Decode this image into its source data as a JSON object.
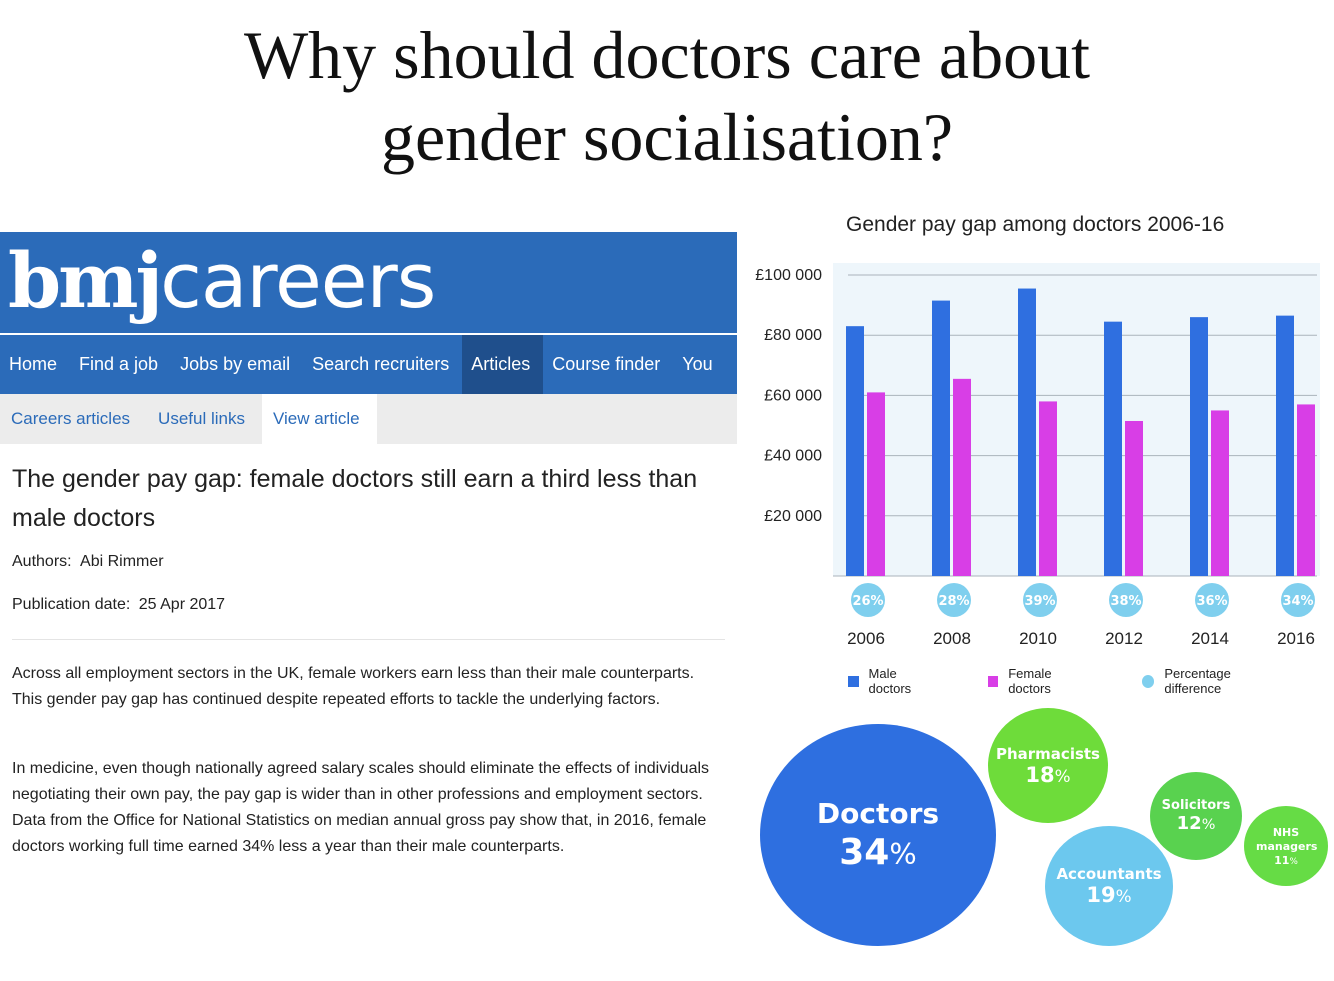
{
  "slide": {
    "title_line1": "Why should doctors care about",
    "title_line2": "gender socialisation?"
  },
  "bmj": {
    "logo_bold": "bmj",
    "logo_light": "careers",
    "nav": [
      "Home",
      "Find a job",
      "Jobs by email",
      "Search recruiters",
      "Articles",
      "Course finder",
      "You"
    ],
    "nav_active": "Articles",
    "subnav": [
      "Careers articles",
      "Useful links",
      "View article"
    ],
    "subnav_active": "View article",
    "article_title": "The gender pay gap: female doctors still earn a third less than male doctors",
    "authors_label": "Authors:",
    "authors_value": "Abi Rimmer",
    "pubdate_label": "Publication date:",
    "pubdate_value": "25 Apr 2017",
    "paragraphs": [
      "Across all employment sectors in the UK, female workers earn less than their male counterparts. This gender pay gap has continued despite repeated efforts to tackle the underlying factors.",
      "In medicine, even though nationally agreed salary scales should eliminate the effects of individuals negotiating their own pay, the pay gap is wider than in other professions and employment sectors. Data from the Office for National Statistics on median annual gross pay show that, in 2016, female doctors working full time earned 34% less a year than their male counterparts."
    ],
    "colors": {
      "header": "#2b6bb9",
      "nav_active": "#1f4f8c"
    }
  },
  "chart_data": {
    "type": "bar",
    "title": "Gender pay gap among doctors 2006-16",
    "categories": [
      "2006",
      "2008",
      "2010",
      "2012",
      "2014",
      "2016"
    ],
    "series": [
      {
        "name": "Male doctors",
        "color": "#2f6fe0",
        "values": [
          83000,
          91500,
          95500,
          84500,
          86000,
          86500
        ]
      },
      {
        "name": "Female doctors",
        "color": "#d83ee6",
        "values": [
          61000,
          65500,
          58000,
          51500,
          55000,
          57000
        ]
      }
    ],
    "percentage_difference": {
      "name": "Percentage difference",
      "color": "#7fcfee",
      "labels": [
        "26",
        "28",
        "39",
        "38",
        "36",
        "34"
      ],
      "unit": "%"
    },
    "y_ticks": [
      "£100 000",
      "£80 000",
      "£60 000",
      "£40 000",
      "£20 000"
    ],
    "y_tick_values": [
      100000,
      80000,
      60000,
      40000,
      20000
    ],
    "ylim": [
      0,
      100000
    ],
    "grid": true,
    "legend": "bottom"
  },
  "bubbles": [
    {
      "label": "Doctors",
      "value": "34",
      "unit": "%",
      "color": "#2e6fe0"
    },
    {
      "label": "Pharmacists",
      "value": "18",
      "unit": "%",
      "color": "#6edc3a"
    },
    {
      "label": "Solicitors",
      "value": "12",
      "unit": "%",
      "color": "#59d24f"
    },
    {
      "label": "NHS managers",
      "value": "11",
      "unit": "%",
      "color": "#66dc45"
    },
    {
      "label": "Accountants",
      "value": "19",
      "unit": "%",
      "color": "#6cc8ee"
    }
  ]
}
